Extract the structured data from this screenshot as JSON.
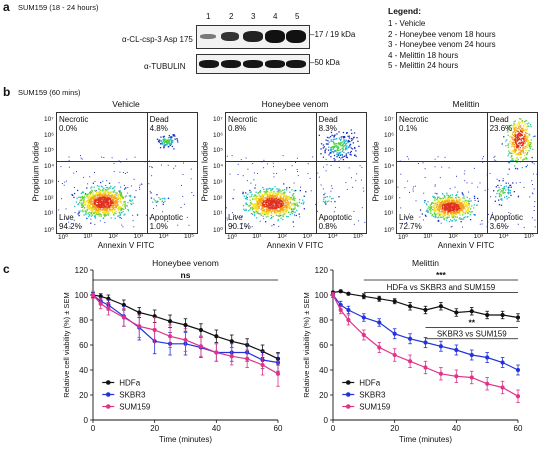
{
  "panel_a": {
    "letter": "a",
    "condition": "SUM159 (18 - 24 hours)",
    "lanes": [
      "1",
      "2",
      "3",
      "4",
      "5"
    ],
    "row1_label": "α-CL-csp-3 Asp 175",
    "row1_kda": "17 / 19 kDa",
    "row2_label": "α-TUBULIN",
    "row2_kda": "50 kDa",
    "legend_title": "Legend:",
    "legend_items": [
      "1 - Vehicle",
      "2 - Honeybee venom 18 hours",
      "3 - Honeybee venom 24 hours",
      "4 - Melittin 18 hours",
      "5 - Melittin 24 hours"
    ]
  },
  "panel_b": {
    "letter": "b",
    "condition": "SUM159 (60 mins)",
    "plots": [
      {
        "title": "Vehicle",
        "necrotic": "0.0%",
        "dead": "4.8%",
        "live": "94.2%",
        "apoptotic": "1.0%"
      },
      {
        "title": "Honeybee venom",
        "necrotic": "0.8%",
        "dead": "8.3%",
        "live": "90.1%",
        "apoptotic": "0.8%"
      },
      {
        "title": "Melittin",
        "necrotic": "0.1%",
        "dead": "23.6%",
        "live": "72.7%",
        "apoptotic": "3.6%"
      }
    ],
    "q_labels": {
      "necrotic": "Necrotic",
      "dead": "Dead",
      "live": "Live",
      "apoptotic": "Apoptotic"
    },
    "xlabel": "Annexin V FITC",
    "ylabel": "Propidium Iodide",
    "ticks_x": [
      "10⁰",
      "10¹",
      "10²",
      "10³",
      "10⁴",
      "10⁵"
    ],
    "ticks_y": [
      "10⁰",
      "10¹",
      "10²",
      "10³",
      "10⁴",
      "10⁵",
      "10⁶",
      "10⁷"
    ]
  },
  "panel_c": {
    "letter": "c"
  },
  "chart_data": [
    {
      "type": "line",
      "title": "Honeybee venom",
      "xlabel": "Time (minutes)",
      "ylabel": "Relative cell viability (%) ± SEM",
      "xlim": [
        0,
        60
      ],
      "ylim": [
        0,
        120
      ],
      "xticks": [
        0,
        20,
        40,
        60
      ],
      "yticks": [
        0,
        20,
        40,
        60,
        80,
        100,
        120
      ],
      "x": [
        0,
        2.5,
        5,
        10,
        15,
        20,
        25,
        30,
        35,
        40,
        45,
        50,
        55,
        60
      ],
      "series": [
        {
          "name": "HDFa",
          "color": "#111111",
          "marker": "circle",
          "values": [
            100,
            99,
            97,
            92,
            86,
            83,
            79,
            76,
            72,
            67,
            63,
            60,
            55,
            49
          ],
          "err": [
            2,
            2,
            3,
            4,
            4,
            5,
            5,
            5,
            5,
            5,
            5,
            5,
            5,
            5
          ]
        },
        {
          "name": "SKBR3",
          "color": "#2233dd",
          "marker": "circle",
          "values": [
            100,
            95,
            92,
            83,
            74,
            63,
            61,
            61,
            58,
            54,
            54,
            54,
            48,
            46
          ],
          "err": [
            2,
            3,
            4,
            8,
            10,
            10,
            9,
            9,
            8,
            7,
            7,
            7,
            7,
            7
          ]
        },
        {
          "name": "SUM159",
          "color": "#e0338a",
          "marker": "circle",
          "values": [
            100,
            93,
            89,
            82,
            75,
            72,
            67,
            64,
            59,
            54,
            51,
            49,
            44,
            37
          ],
          "err": [
            3,
            4,
            5,
            7,
            9,
            10,
            9,
            9,
            8,
            7,
            7,
            7,
            8,
            10
          ]
        }
      ],
      "annotations": [
        {
          "text": "ns",
          "x1": 0,
          "x2": 60,
          "y": 112
        }
      ],
      "legend_position": "bottom-left"
    },
    {
      "type": "line",
      "title": "Melittin",
      "xlabel": "Time (minutes)",
      "ylabel": "Relative cell viability (%) ± SEM",
      "xlim": [
        0,
        60
      ],
      "ylim": [
        0,
        120
      ],
      "xticks": [
        0,
        20,
        40,
        60
      ],
      "yticks": [
        0,
        20,
        40,
        60,
        80,
        100,
        120
      ],
      "x": [
        0,
        2.5,
        5,
        10,
        15,
        20,
        25,
        30,
        35,
        40,
        45,
        50,
        55,
        60
      ],
      "series": [
        {
          "name": "HDFa",
          "color": "#111111",
          "marker": "circle",
          "values": [
            102,
            103,
            101,
            99,
            97,
            95,
            91,
            88,
            91,
            86,
            87,
            84,
            84,
            82
          ],
          "err": [
            1,
            1,
            1,
            2,
            2,
            2,
            3,
            3,
            3,
            3,
            3,
            3,
            3,
            3
          ]
        },
        {
          "name": "SKBR3",
          "color": "#2233dd",
          "marker": "circle",
          "values": [
            100,
            92,
            88,
            82,
            78,
            69,
            65,
            62,
            59,
            56,
            52,
            50,
            46,
            40
          ],
          "err": [
            2,
            3,
            3,
            3,
            3,
            4,
            4,
            4,
            4,
            4,
            4,
            4,
            4,
            4
          ]
        },
        {
          "name": "SUM159",
          "color": "#e0338a",
          "marker": "circle",
          "values": [
            100,
            88,
            80,
            68,
            58,
            52,
            47,
            42,
            37,
            35,
            34,
            29,
            26,
            19
          ],
          "err": [
            2,
            3,
            4,
            4,
            4,
            5,
            5,
            5,
            5,
            5,
            5,
            5,
            5,
            5
          ]
        }
      ],
      "annotations": [
        {
          "text": "***",
          "x1": 10,
          "x2": 60,
          "y": 112
        },
        {
          "text": "HDFa vs SKBR3 and SUM159",
          "x1": 10,
          "x2": 60,
          "y": 104
        },
        {
          "text": "**",
          "x1": 30,
          "x2": 60,
          "y": 74
        },
        {
          "text": "SKBR3 vs SUM159",
          "x1": 30,
          "x2": 60,
          "y": 67
        }
      ],
      "legend_position": "bottom-left"
    }
  ]
}
